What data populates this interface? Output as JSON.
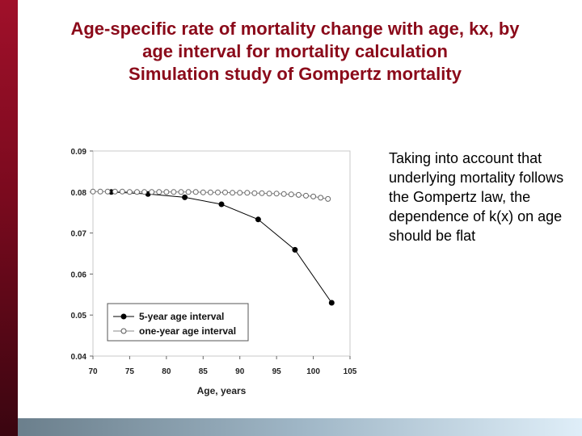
{
  "title_lines": [
    "Age-specific rate of mortality change with age, kx, by",
    "age interval for mortality calculation",
    "Simulation study of Gompertz mortality"
  ],
  "side_text": "Taking into account that underlying mortality follows the Gompertz law, the dependence of k(x) on age should be flat",
  "chart_data": {
    "type": "line",
    "title": "",
    "xlabel": "Age, years",
    "ylabel": "",
    "xlim": [
      70,
      105
    ],
    "ylim": [
      0.04,
      0.09
    ],
    "x_ticks": [
      "70",
      "75",
      "80",
      "85",
      "90",
      "95",
      "100",
      "105"
    ],
    "x_tick_values": [
      70,
      75,
      80,
      85,
      90,
      95,
      100,
      105
    ],
    "y_ticks": [
      "0.04",
      "0.05",
      "0.06",
      "0.07",
      "0.08",
      "0.09"
    ],
    "y_tick_values": [
      0.04,
      0.05,
      0.06,
      0.07,
      0.08,
      0.09
    ],
    "legend_position": "bottom-left",
    "series": [
      {
        "name": "5-year age interval",
        "marker": "filled",
        "color": "#000000",
        "line_style": "solid",
        "x": [
          72.5,
          77.5,
          82.5,
          87.5,
          92.5,
          97.5,
          102.5
        ],
        "y": [
          0.08,
          0.0795,
          0.0787,
          0.077,
          0.0733,
          0.0659,
          0.053
        ]
      },
      {
        "name": "one-year age interval",
        "marker": "open",
        "color": "#888888",
        "line_style": "solid",
        "x": [
          70,
          71,
          72,
          73,
          74,
          75,
          76,
          77,
          78,
          79,
          80,
          81,
          82,
          83,
          84,
          85,
          86,
          87,
          88,
          89,
          90,
          91,
          92,
          93,
          94,
          95,
          96,
          97,
          98,
          99,
          100,
          101,
          102
        ],
        "y": [
          0.0801,
          0.0801,
          0.0801,
          0.0801,
          0.0801,
          0.08,
          0.08,
          0.08,
          0.08,
          0.08,
          0.08,
          0.08,
          0.08,
          0.08,
          0.08,
          0.0799,
          0.0799,
          0.0799,
          0.0799,
          0.0798,
          0.0798,
          0.0798,
          0.0797,
          0.0797,
          0.0796,
          0.0796,
          0.0795,
          0.0794,
          0.0793,
          0.0791,
          0.0789,
          0.0786,
          0.0783
        ]
      }
    ]
  }
}
